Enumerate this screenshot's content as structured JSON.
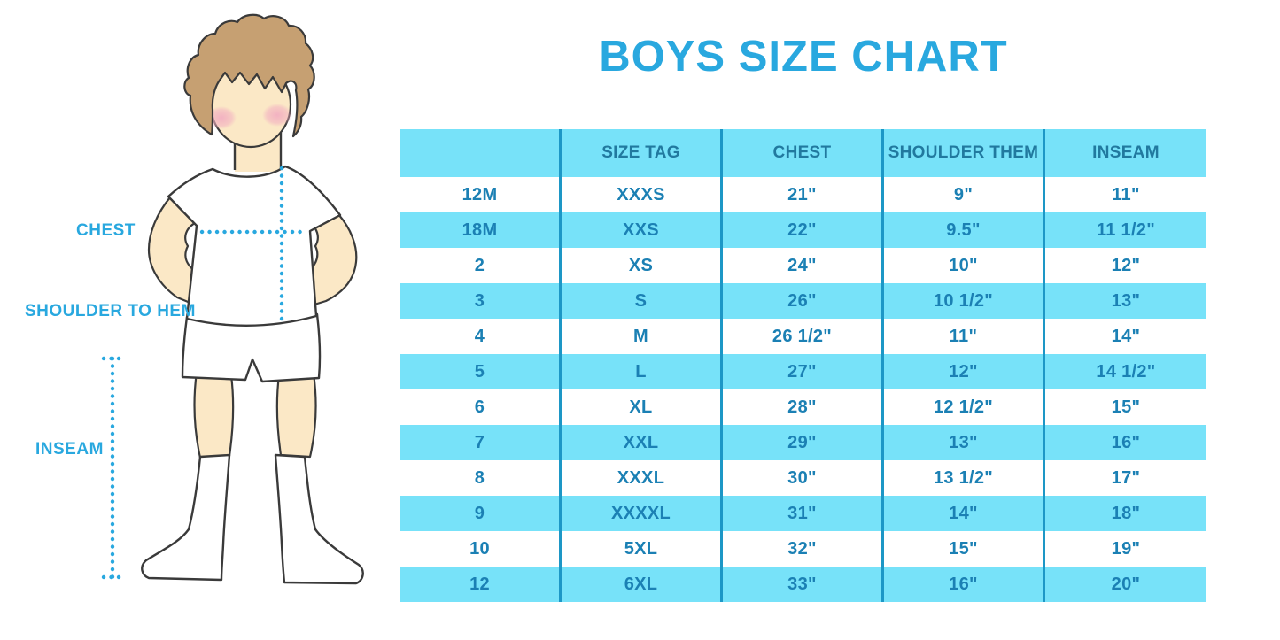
{
  "title": "BOYS SIZE CHART",
  "colors": {
    "accent": "#29A8DF",
    "table_bg": "#77E2F9",
    "divider": "#1D97C6",
    "cell_text": "#1B80B4",
    "header_text": "#21799F",
    "hair": "#C6A072",
    "skin": "#FBE8C6",
    "cheek": "#F2AFC1",
    "outline": "#3A3A3A"
  },
  "figure": {
    "labels": {
      "chest": "CHEST",
      "shoulder_to_hem": "SHOULDER TO HEM",
      "inseam": "INSEAM"
    }
  },
  "table": {
    "headers": [
      "",
      "SIZE TAG",
      "CHEST",
      "SHOULDER THEM",
      "INSEAM"
    ],
    "rows": [
      [
        "12M",
        "XXXS",
        "21\"",
        "9\"",
        "11\""
      ],
      [
        "18M",
        "XXS",
        "22\"",
        "9.5\"",
        "11 1/2\""
      ],
      [
        "2",
        "XS",
        "24\"",
        "10\"",
        "12\""
      ],
      [
        "3",
        "S",
        "26\"",
        "10 1/2\"",
        "13\""
      ],
      [
        "4",
        "M",
        "26 1/2\"",
        "11\"",
        "14\""
      ],
      [
        "5",
        "L",
        "27\"",
        "12\"",
        "14 1/2\""
      ],
      [
        "6",
        "XL",
        "28\"",
        "12 1/2\"",
        "15\""
      ],
      [
        "7",
        "XXL",
        "29\"",
        "13\"",
        "16\""
      ],
      [
        "8",
        "XXXL",
        "30\"",
        "13 1/2\"",
        "17\""
      ],
      [
        "9",
        "XXXXL",
        "31\"",
        "14\"",
        "18\""
      ],
      [
        "10",
        "5XL",
        "32\"",
        "15\"",
        "19\""
      ],
      [
        "12",
        "6XL",
        "33\"",
        "16\"",
        "20\""
      ]
    ]
  }
}
